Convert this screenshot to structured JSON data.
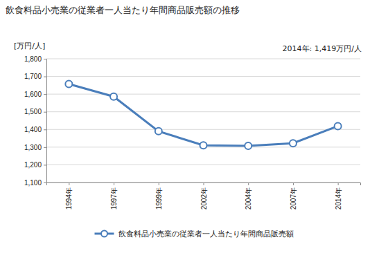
{
  "chart_data": {
    "type": "line",
    "title": "飲食料品小売業の従業者一人当たり年間商品販売額の推移",
    "ylabel": "[万円/人]",
    "annotation": "2014年: 1,419万円/人",
    "categories": [
      "1994年",
      "1997年",
      "1999年",
      "2002年",
      "2004年",
      "2007年",
      "2014年"
    ],
    "series": [
      {
        "name": "飲食料品小売業の従業者一人当たり年間商品販売額",
        "color": "#4a7ebb",
        "marker": "circle",
        "values": [
          1657,
          1586,
          1390,
          1310,
          1307,
          1322,
          1419
        ]
      }
    ],
    "ylim": [
      1100,
      1800
    ],
    "yticks": [
      {
        "value": 1100,
        "label": "1,100"
      },
      {
        "value": 1200,
        "label": "1,200"
      },
      {
        "value": 1300,
        "label": "1,300"
      },
      {
        "value": 1400,
        "label": "1,400"
      },
      {
        "value": 1500,
        "label": "1,500"
      },
      {
        "value": 1600,
        "label": "1,600"
      },
      {
        "value": 1700,
        "label": "1,700"
      },
      {
        "value": 1800,
        "label": "1,800"
      }
    ],
    "grid": true,
    "legend": "bottom"
  }
}
